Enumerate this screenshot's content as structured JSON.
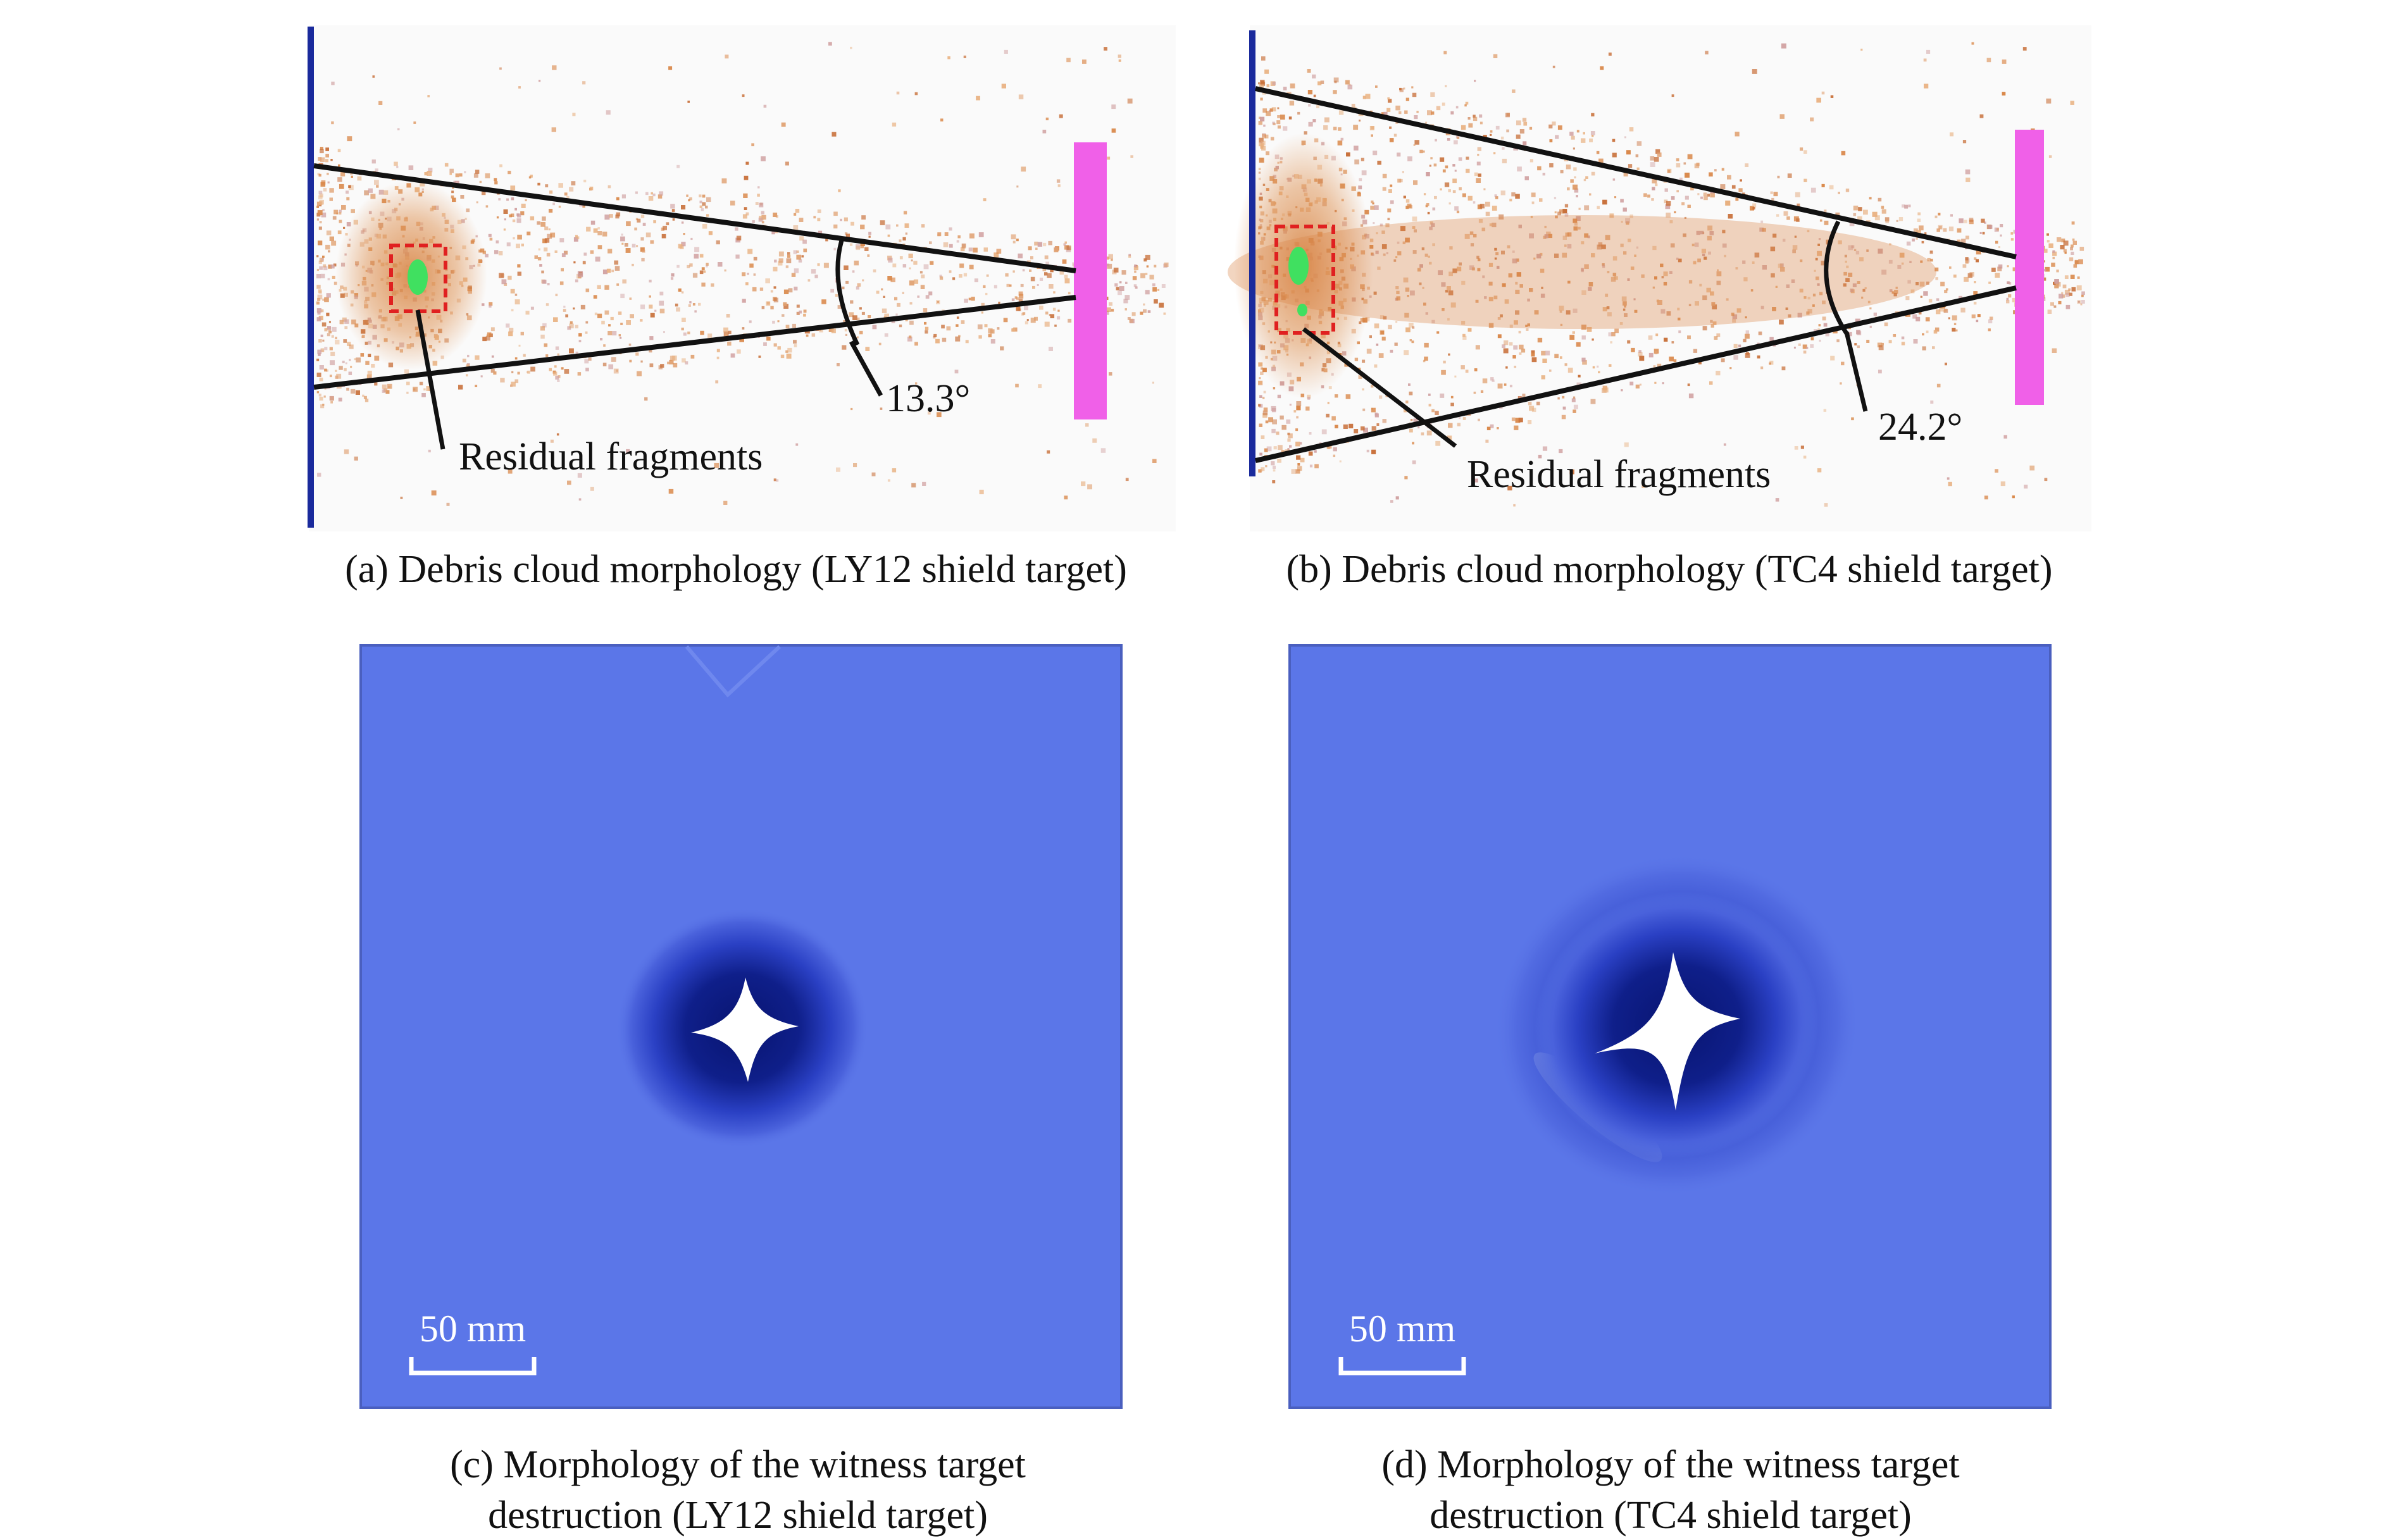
{
  "panels": {
    "a": {
      "caption": "(a) Debris cloud morphology (LY12 shield target)",
      "fragment_label": "Residual fragments",
      "angle_label": "13.3°"
    },
    "b": {
      "caption": "(b) Debris cloud morphology (TC4 shield target)",
      "fragment_label": "Residual fragments",
      "angle_label": "24.2°"
    },
    "c": {
      "caption_line1": "(c) Morphology of the witness target",
      "caption_line2": "destruction (LY12 shield target)",
      "scale_label": "50 mm"
    },
    "d": {
      "caption_line1": "(d) Morphology of the witness target",
      "caption_line2": "destruction (TC4 shield target)",
      "scale_label": "50 mm"
    }
  },
  "colors": {
    "background": "#fafafa",
    "shield_plate": "#1a2a9c",
    "witness_plate_side": "#f060e8",
    "cone_lines": "#111111",
    "debris": "#d9884a",
    "fragment_box": "#e02020",
    "fragment_core": "#40e060",
    "witness_target": "#5b76e8",
    "damage_dark": "#0a1a80",
    "damage_mid": "#2a3ec0",
    "hole": "#ffffff"
  }
}
